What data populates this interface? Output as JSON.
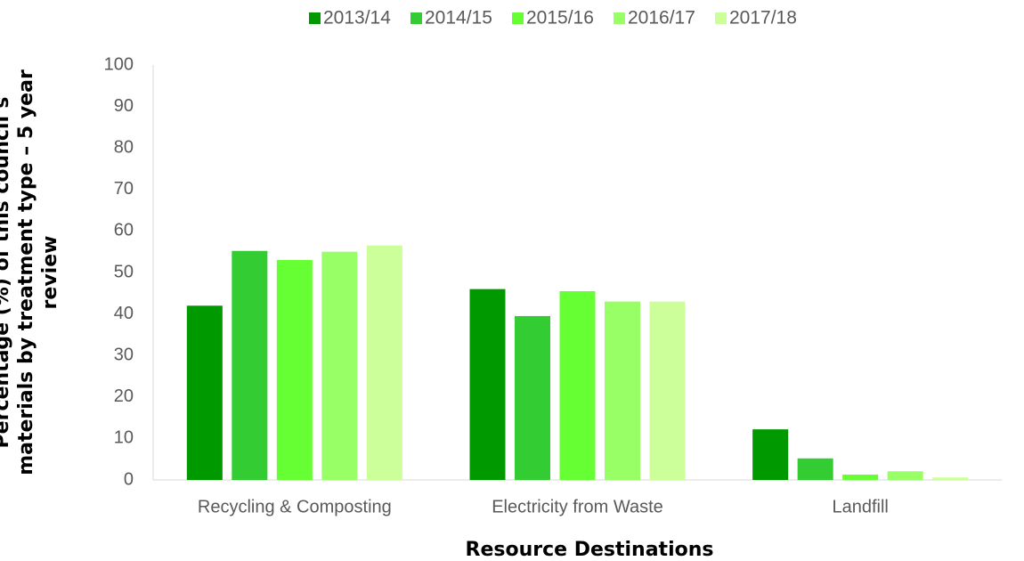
{
  "chart_data": {
    "type": "bar",
    "xlabel": "Resource Destinations",
    "ylabel": [
      "Percentage (%) of this council’s",
      "materials by treatment type – 5 year",
      "review"
    ],
    "categories": [
      "Recycling & Composting",
      "Electricity from Waste",
      "Landfill"
    ],
    "series": [
      {
        "name": "2013/14",
        "color": "#009900",
        "values": [
          42,
          46,
          12.2
        ]
      },
      {
        "name": "2014/15",
        "color": "#33cc33",
        "values": [
          55.2,
          39.5,
          5.2
        ]
      },
      {
        "name": "2015/16",
        "color": "#66ff33",
        "values": [
          53,
          45.5,
          1.3
        ]
      },
      {
        "name": "2016/17",
        "color": "#99ff66",
        "values": [
          55,
          43,
          2.1
        ]
      },
      {
        "name": "2017/18",
        "color": "#ccff99",
        "values": [
          56.5,
          43,
          0.6
        ]
      }
    ],
    "ylim": [
      0,
      100
    ],
    "yticks": [
      0,
      10,
      20,
      30,
      40,
      50,
      60,
      70,
      80,
      90,
      100
    ],
    "grid": false,
    "legend": "top"
  }
}
